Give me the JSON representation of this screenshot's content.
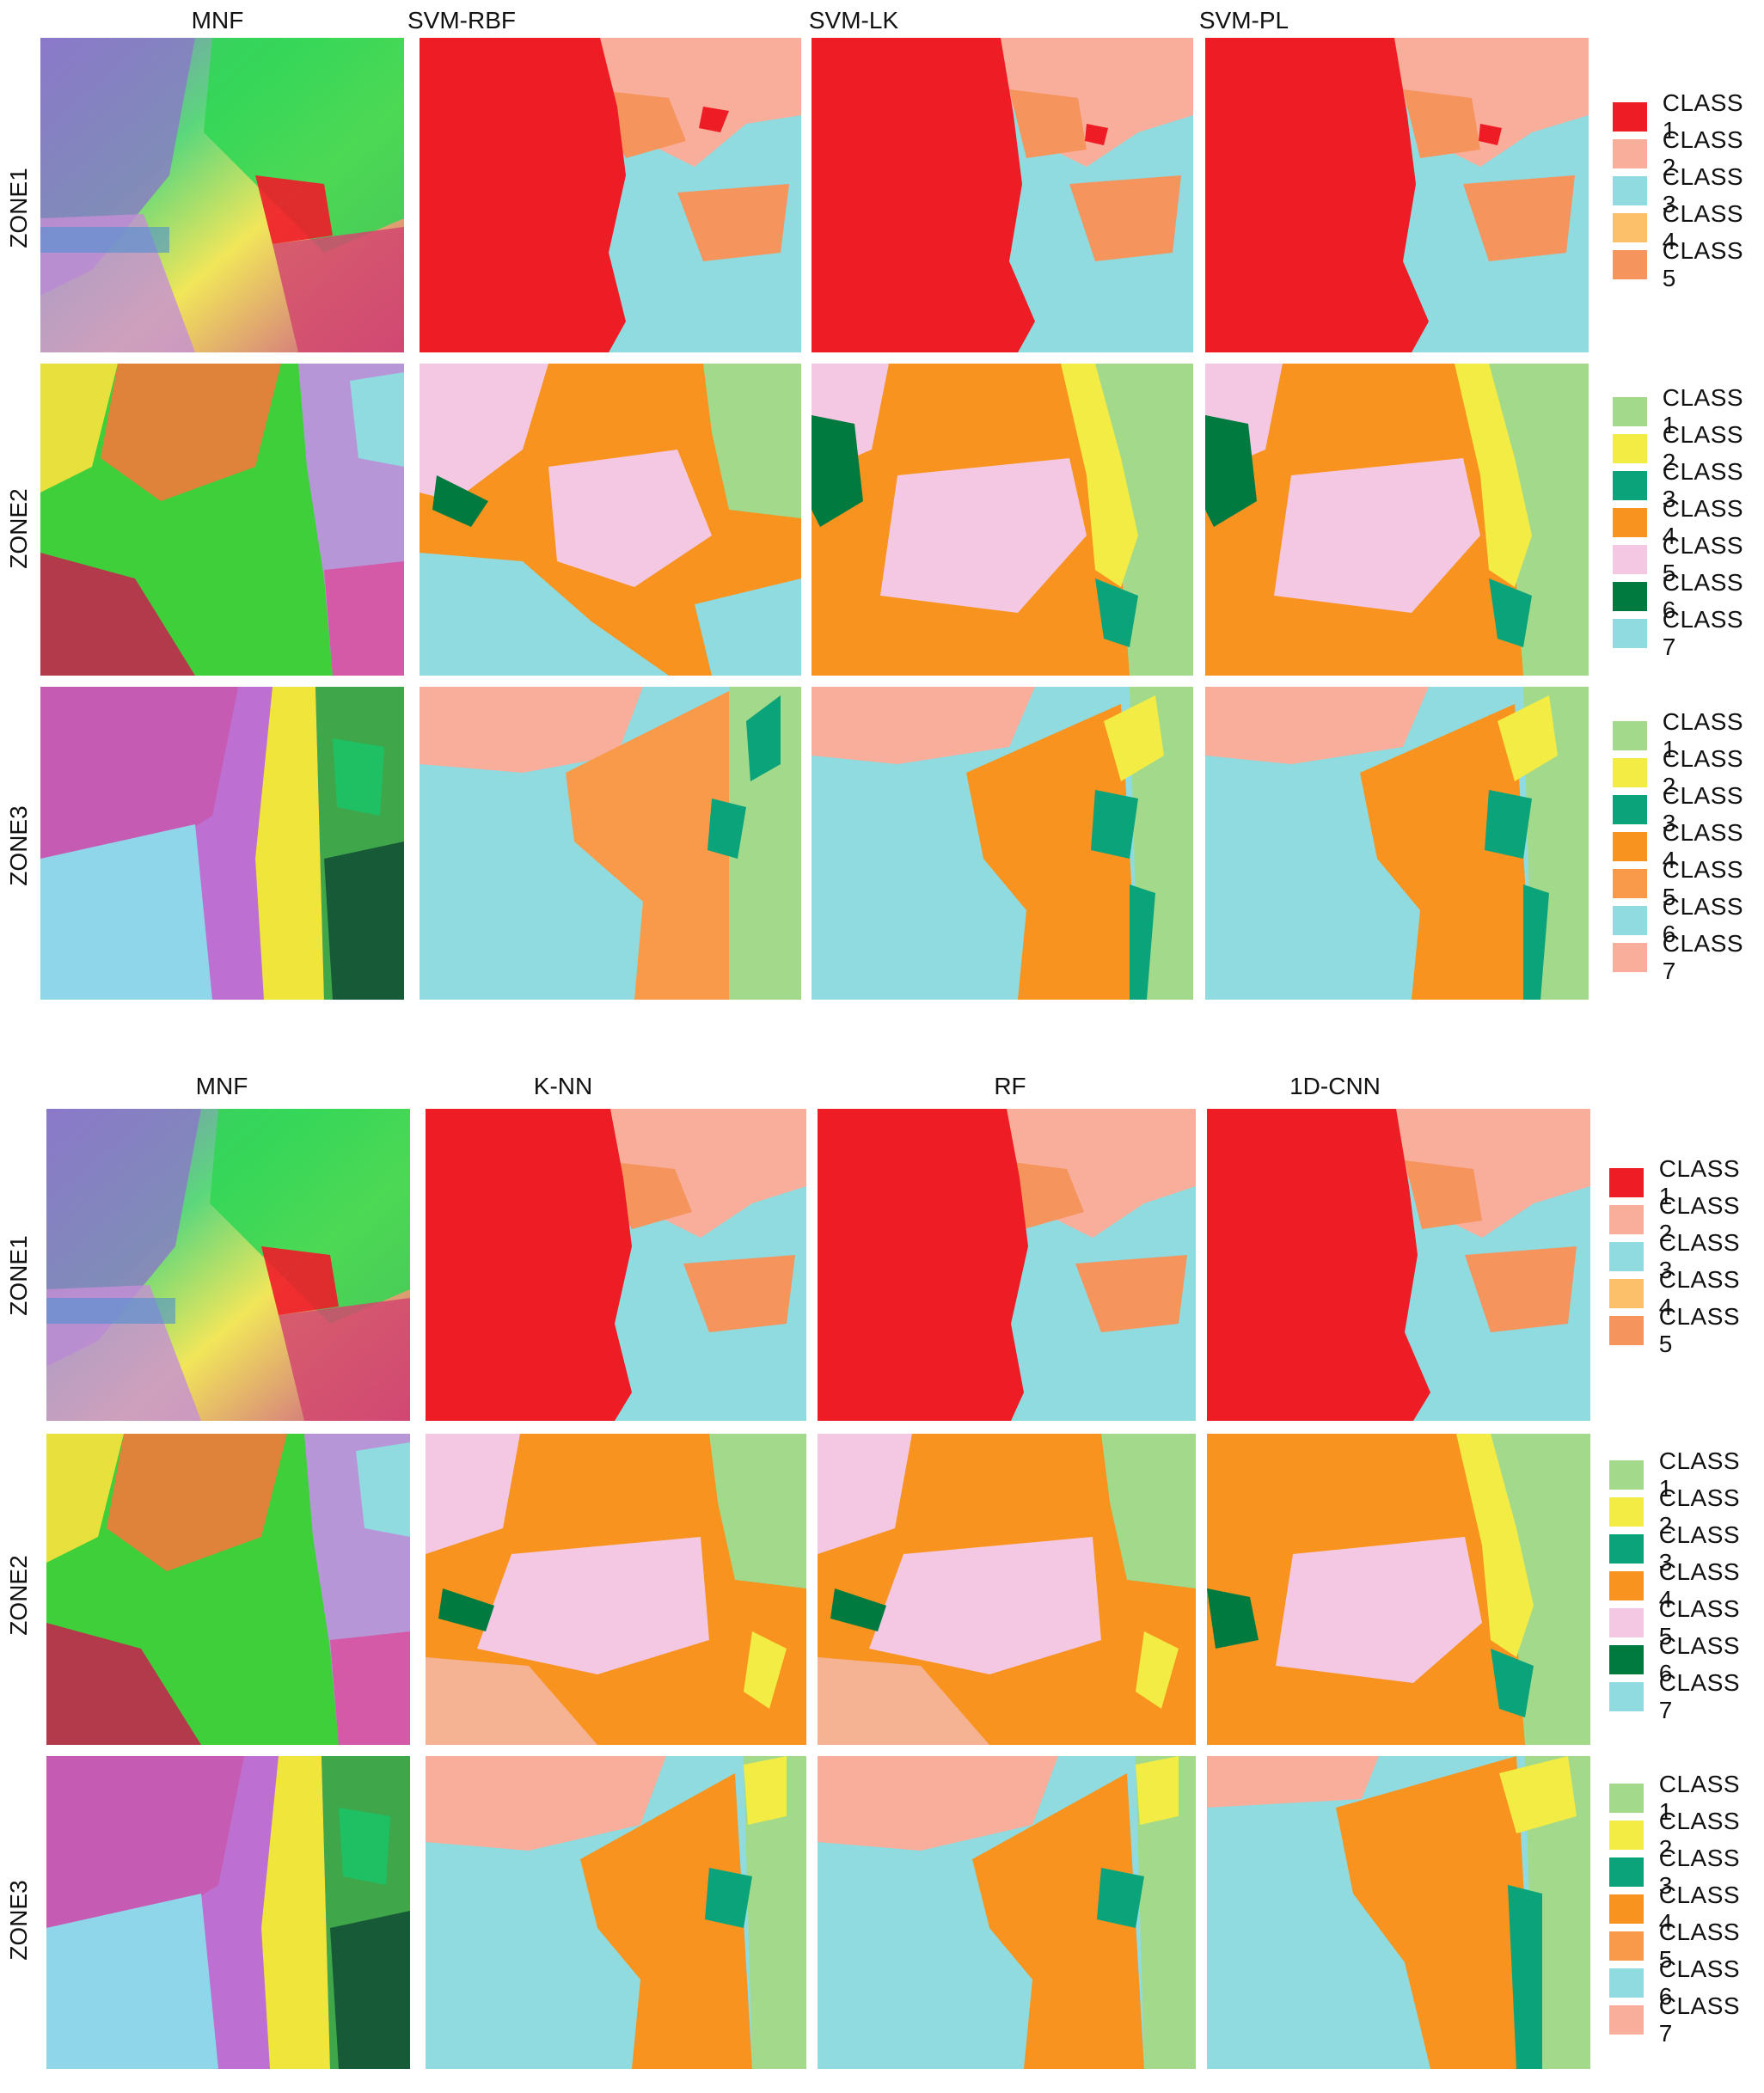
{
  "blocks": [
    {
      "columns": [
        "MNF",
        "SVM-RBF",
        "SVM-LK",
        "SVM-PL"
      ],
      "zones": [
        "ZONE1",
        "ZONE2",
        "ZONE3"
      ]
    },
    {
      "columns": [
        "MNF",
        "K-NN",
        "RF",
        "1D-CNN"
      ],
      "zones": [
        "ZONE1",
        "ZONE2",
        "ZONE3"
      ]
    }
  ],
  "legends": {
    "zone1": [
      {
        "label": "CLASS 1",
        "color": "#ee1c25"
      },
      {
        "label": "CLASS 2",
        "color": "#f8ae9a"
      },
      {
        "label": "CLASS 3",
        "color": "#8fdbe0"
      },
      {
        "label": "CLASS 4",
        "color": "#fcbf6a"
      },
      {
        "label": "CLASS 5",
        "color": "#f5945c"
      }
    ],
    "zone2": [
      {
        "label": "CLASS 1",
        "color": "#a3d98b"
      },
      {
        "label": "CLASS 2",
        "color": "#f2ec44"
      },
      {
        "label": "CLASS 3",
        "color": "#0aa37a"
      },
      {
        "label": "CLASS 4",
        "color": "#f7931e"
      },
      {
        "label": "CLASS 5",
        "color": "#f4c8e2"
      },
      {
        "label": "CLASS 6",
        "color": "#007a3e"
      },
      {
        "label": "CLASS 7",
        "color": "#8fdbe0"
      }
    ],
    "zone3": [
      {
        "label": "CLASS 1",
        "color": "#a3d98b"
      },
      {
        "label": "CLASS 2",
        "color": "#f2ec44"
      },
      {
        "label": "CLASS 3",
        "color": "#0aa37a"
      },
      {
        "label": "CLASS 4",
        "color": "#f7931e"
      },
      {
        "label": "CLASS 5",
        "color": "#f99a4a"
      },
      {
        "label": "CLASS 6",
        "color": "#8fdbe0"
      },
      {
        "label": "CLASS 7",
        "color": "#f8ae9a"
      }
    ]
  }
}
